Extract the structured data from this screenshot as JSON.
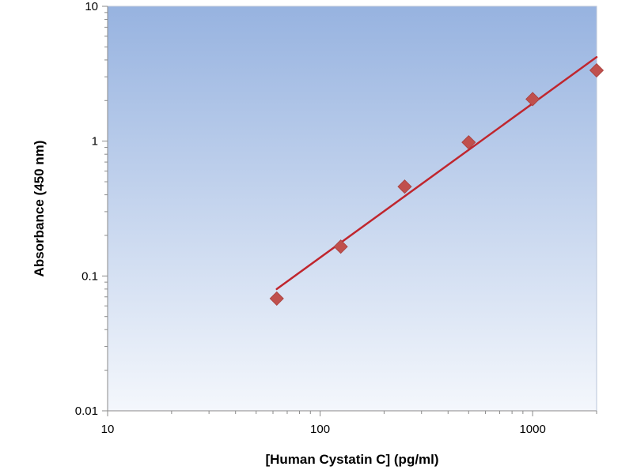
{
  "chart_data": {
    "type": "scatter",
    "title": "",
    "xlabel": "[Human Cystatin C] (pg/ml)",
    "ylabel": "Absorbance (450 nm)",
    "xscale": "log",
    "yscale": "log",
    "xlim": [
      10,
      2000
    ],
    "ylim": [
      0.01,
      10
    ],
    "x_ticks": [
      10,
      100,
      1000
    ],
    "x_tick_labels": [
      "10",
      "100",
      "1000"
    ],
    "y_ticks": [
      0.01,
      0.1,
      1,
      10
    ],
    "y_tick_labels": [
      "0.01",
      "0.1",
      "1",
      "10"
    ],
    "grid": false,
    "legend": "none",
    "points": {
      "x": [
        62.5,
        125,
        250,
        500,
        1000,
        2000
      ],
      "y": [
        0.068,
        0.165,
        0.46,
        0.98,
        2.05,
        3.35
      ],
      "marker": "diamond",
      "color": "#c0504d"
    },
    "fit_line": {
      "x": [
        62.5,
        2000
      ],
      "y": [
        0.08,
        4.2
      ],
      "color": "#c0262e"
    },
    "colors": {
      "plot_bg_top": "#97b3e0",
      "plot_bg_bottom": "#f4f7fc",
      "marker": "#c0504d",
      "line": "#c0262e"
    }
  }
}
